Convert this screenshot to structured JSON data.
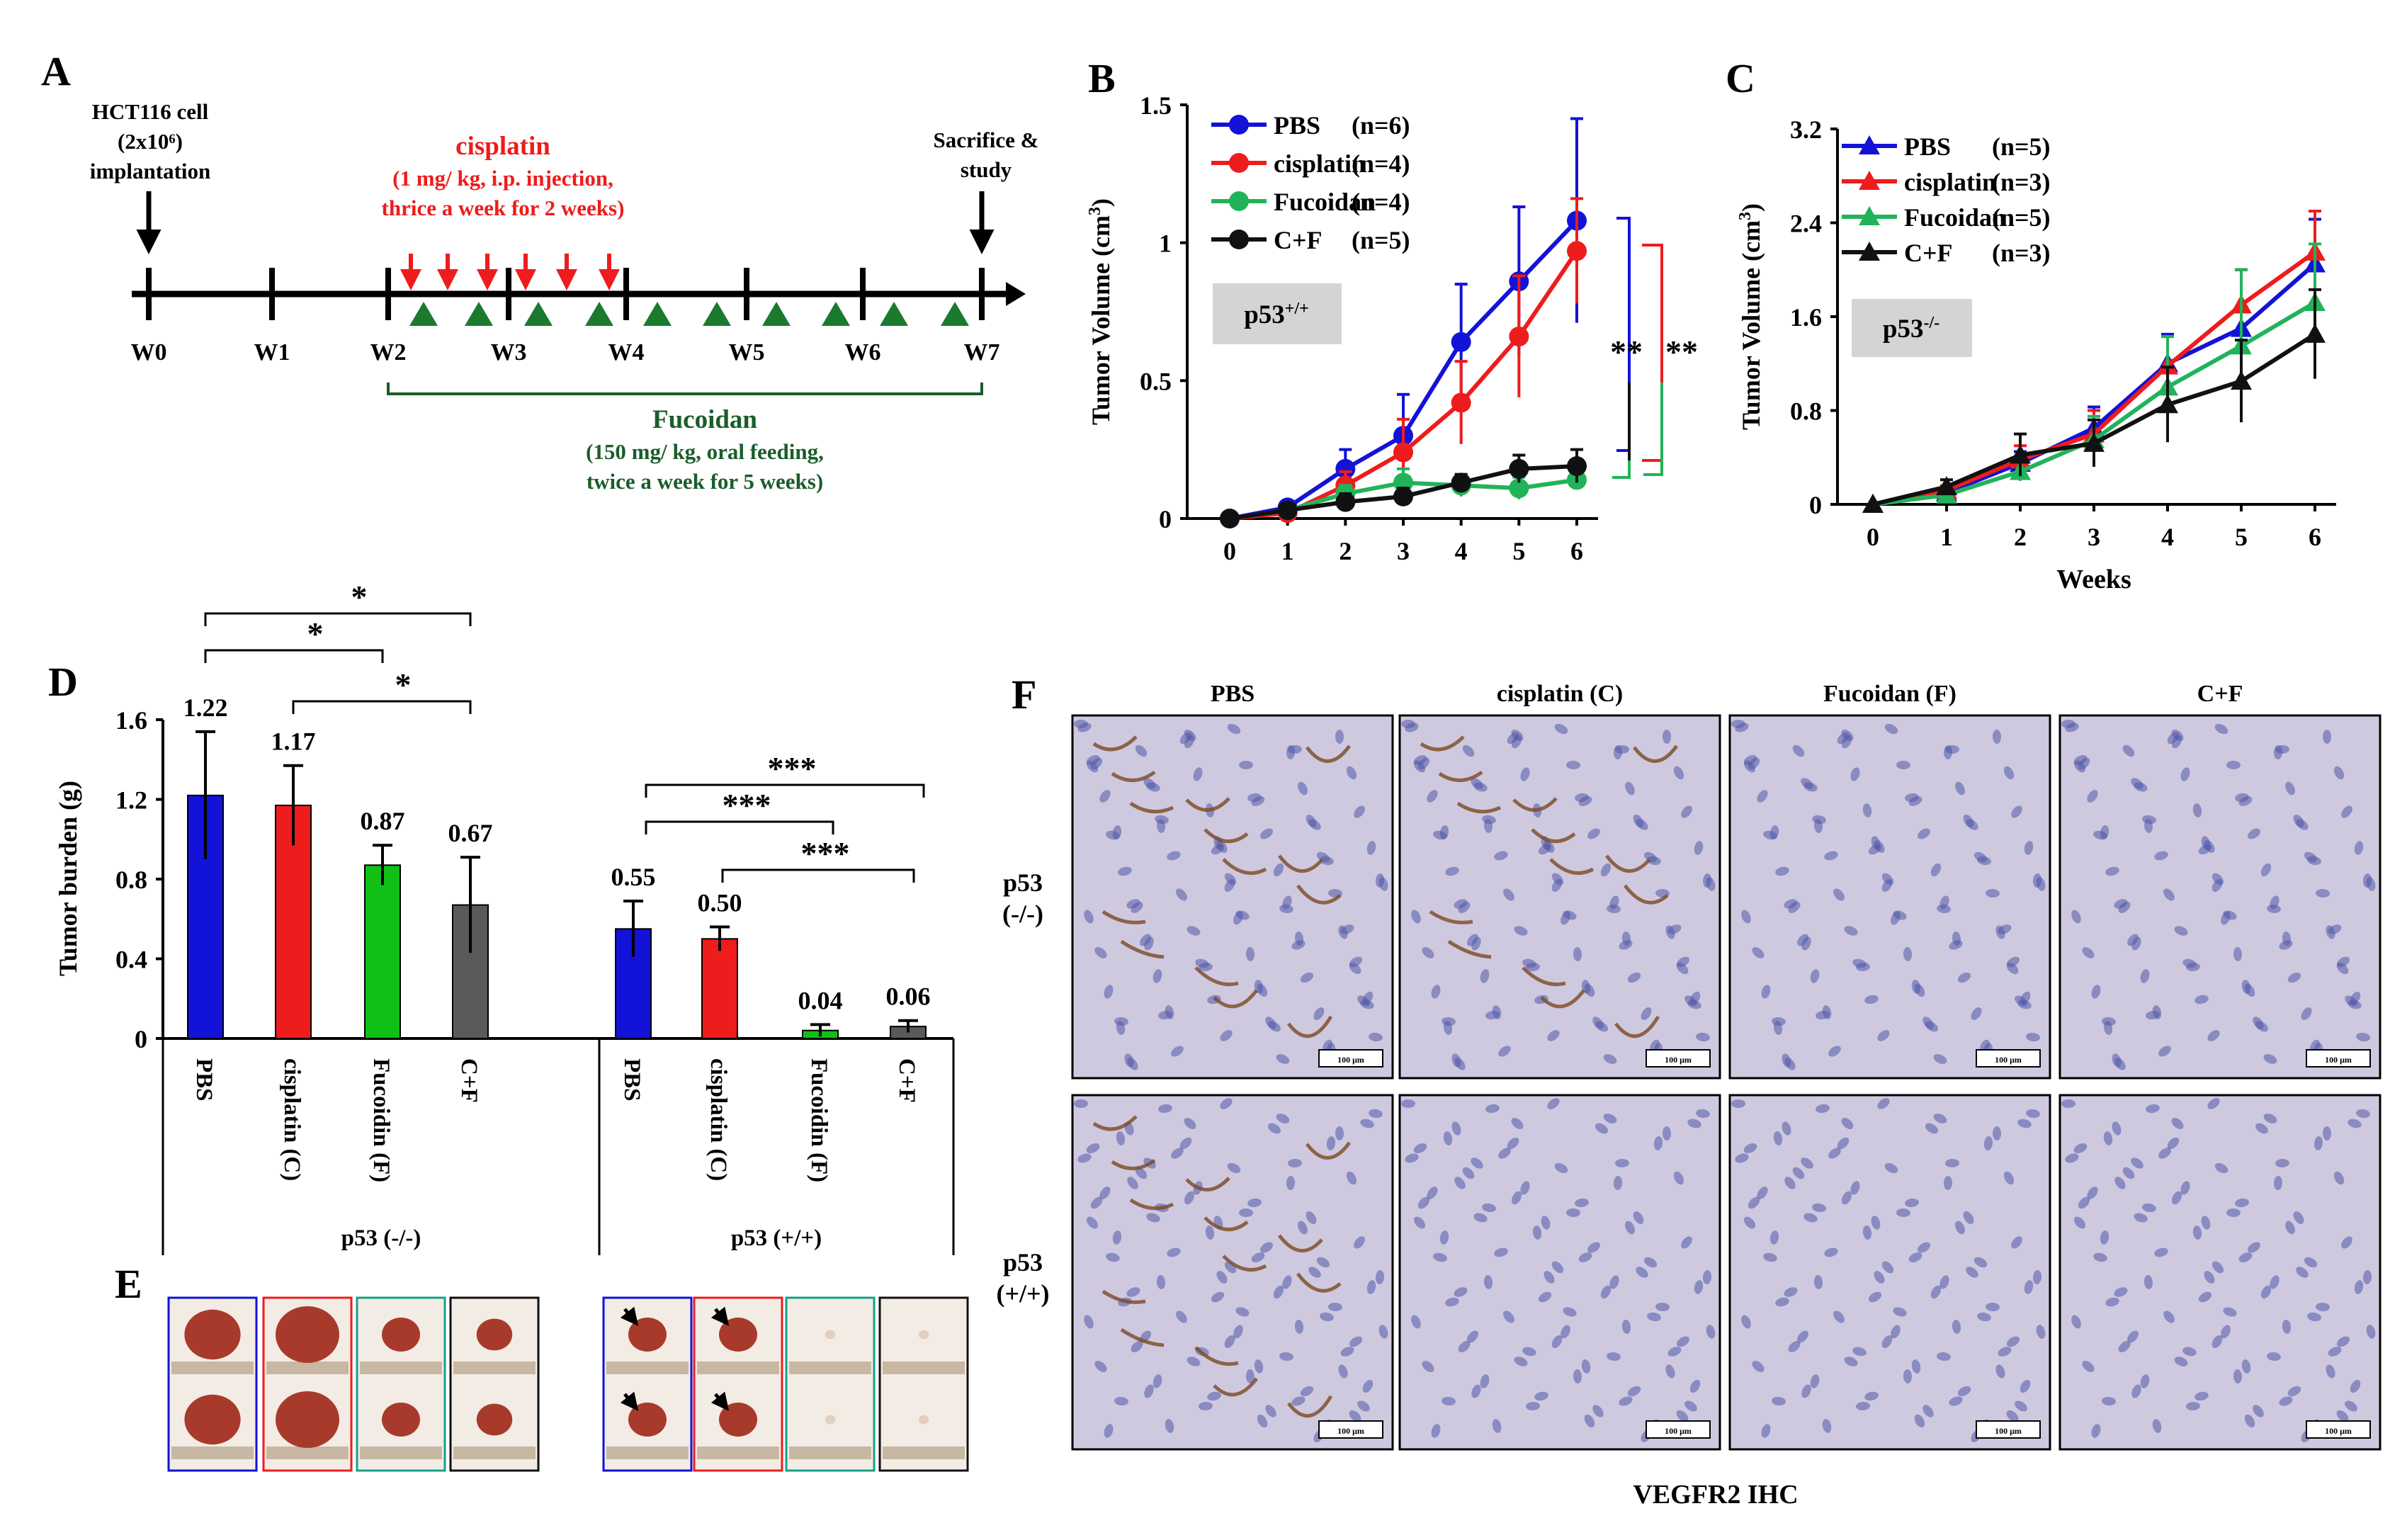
{
  "colors": {
    "pbs": "#1212d8",
    "cisplatin": "#ee1c1c",
    "fucoidan": "#22b35a",
    "combo": "#111111",
    "bar_green": "#10c016",
    "bar_gray": "#5a5a5a",
    "gray_label_bg": "#d4d4d4",
    "tissue_bg": "#cfc9e0",
    "tumor_fill": "#a83a2c"
  },
  "panels": {
    "a": "A",
    "b": "B",
    "c": "C",
    "d": "D",
    "e": "E",
    "f": "F"
  },
  "panel_a": {
    "implant_line1": "HCT116 cell",
    "implant_line2": "(2x10⁶)",
    "implant_line3": "implantation",
    "cis_title": "cisplatin",
    "cis_line2": "(1 mg/ kg, i.p. injection,",
    "cis_line3": "thrice a week for 2 weeks)",
    "sac_line1": "Sacrifice &",
    "sac_line2": "study",
    "weeks": [
      "W0",
      "W1",
      "W2",
      "W3",
      "W4",
      "W5",
      "W6",
      "W7"
    ],
    "fuc_title": "Fucoidan",
    "fuc_line2": "(150 mg/ kg, oral feeding,",
    "fuc_line3": "twice a week for 5 weeks)"
  },
  "panel_f": {
    "cols": [
      "PBS",
      "cisplatin (C)",
      "Fucoidan (F)",
      "C+F"
    ],
    "row1_a": "p53",
    "row1_b": "(-/-)",
    "row2_a": "p53",
    "row2_b": "(+/+)",
    "caption": "VEGFR2 IHC",
    "scale_label": "100 μm"
  },
  "chart_data": [
    {
      "id": "B",
      "type": "line",
      "x": [
        0,
        1,
        2,
        3,
        4,
        5,
        6
      ],
      "ylim": [
        0,
        1.5
      ],
      "yticks": [
        0,
        0.5,
        1,
        1.5
      ],
      "ytick_labels": [
        "0",
        "0.5",
        "1",
        "1.5"
      ],
      "ylabel_main": "Tumor Volume (cm",
      "ylabel_sup": "3",
      "ylabel_end": ")",
      "xlabel": "",
      "marker": "circle",
      "label_main": "p53",
      "label_sup": "+/+",
      "series": [
        {
          "name": "PBS",
          "n": "(n=6)",
          "color_key": "pbs",
          "values": [
            0,
            0.04,
            0.18,
            0.3,
            0.64,
            0.86,
            1.08
          ],
          "err": [
            0,
            0.01,
            0.07,
            0.15,
            0.21,
            0.27,
            0.37
          ]
        },
        {
          "name": "cisplatin",
          "n": "(n=4)",
          "color_key": "cisplatin",
          "values": [
            0,
            0.02,
            0.12,
            0.24,
            0.42,
            0.66,
            0.97
          ],
          "err": [
            0,
            0.01,
            0.05,
            0.12,
            0.15,
            0.22,
            0.19
          ]
        },
        {
          "name": "Fucoidan",
          "n": "(n=4)",
          "color_key": "fucoidan",
          "values": [
            0,
            0.03,
            0.09,
            0.13,
            0.12,
            0.11,
            0.14
          ],
          "err": [
            0,
            0.01,
            0.03,
            0.05,
            0.04,
            0.04,
            0.03
          ]
        },
        {
          "name": "C+F",
          "n": "(n=5)",
          "color_key": "combo",
          "values": [
            0,
            0.03,
            0.06,
            0.08,
            0.13,
            0.18,
            0.19
          ],
          "err": [
            0,
            0.01,
            0.03,
            0.03,
            0.03,
            0.05,
            0.06
          ]
        }
      ],
      "sig": [
        "**",
        "**"
      ]
    },
    {
      "id": "C",
      "type": "line",
      "x": [
        0,
        1,
        2,
        3,
        4,
        5,
        6
      ],
      "ylim": [
        0,
        3.2
      ],
      "yticks": [
        0,
        0.8,
        1.6,
        2.4,
        3.2
      ],
      "ytick_labels": [
        "0",
        "0.8",
        "1.6",
        "2.4",
        "3.2"
      ],
      "ylabel_main": "Tumor Volume (cm",
      "ylabel_sup": "3",
      "ylabel_end": ")",
      "xlabel": "Weeks",
      "marker": "triangle",
      "label_main": "p53",
      "label_sup": "-/-",
      "series": [
        {
          "name": "PBS",
          "n": "(n=5)",
          "color_key": "pbs",
          "values": [
            0,
            0.1,
            0.35,
            0.65,
            1.2,
            1.5,
            2.05
          ],
          "err": [
            0,
            0.04,
            0.1,
            0.18,
            0.25,
            0.5,
            0.38
          ]
        },
        {
          "name": "cisplatin",
          "n": "(n=3)",
          "color_key": "cisplatin",
          "values": [
            0,
            0.12,
            0.38,
            0.6,
            1.18,
            1.7,
            2.15
          ],
          "err": [
            0,
            0.04,
            0.12,
            0.2,
            0.25,
            0.3,
            0.35
          ]
        },
        {
          "name": "Fucoidan",
          "n": "(n=5)",
          "color_key": "fucoidan",
          "values": [
            0,
            0.08,
            0.28,
            0.55,
            1.0,
            1.35,
            1.72
          ],
          "err": [
            0,
            0.03,
            0.08,
            0.2,
            0.43,
            0.65,
            0.5
          ]
        },
        {
          "name": "C+F",
          "n": "(n=3)",
          "color_key": "combo",
          "values": [
            0,
            0.15,
            0.42,
            0.52,
            0.85,
            1.05,
            1.45
          ],
          "err": [
            0,
            0.06,
            0.18,
            0.2,
            0.32,
            0.35,
            0.38
          ]
        }
      ]
    },
    {
      "id": "D",
      "type": "bar",
      "ylabel": "Tumor burden (g)",
      "ylim": [
        0,
        1.6
      ],
      "yticks": [
        0,
        0.4,
        0.8,
        1.2,
        1.6
      ],
      "ytick_labels": [
        "0",
        "0.4",
        "0.8",
        "1.2",
        "1.6"
      ],
      "groups": [
        {
          "name": "p53 (-/-)",
          "categories": [
            "PBS",
            "cisplatin (C)",
            "Fucoidin (F)",
            "C+F"
          ],
          "values": [
            1.22,
            1.17,
            0.87,
            0.67
          ],
          "err": [
            0.32,
            0.2,
            0.1,
            0.24
          ],
          "labels": [
            "1.22",
            "1.17",
            "0.87",
            "0.67"
          ]
        },
        {
          "name": "p53 (+/+)",
          "categories": [
            "PBS",
            "cisplatin (C)",
            "Fucoidin (F)",
            "C+F"
          ],
          "values": [
            0.55,
            0.5,
            0.04,
            0.06
          ],
          "err": [
            0.14,
            0.06,
            0.03,
            0.03
          ],
          "labels": [
            "0.55",
            "0.50",
            "0.04",
            "0.06"
          ]
        }
      ],
      "bar_color_keys": [
        "pbs",
        "cisplatin",
        "bar_green",
        "bar_gray"
      ],
      "sig_left": [
        "*",
        "*",
        "*"
      ],
      "sig_right": [
        "***",
        "***",
        "***"
      ]
    }
  ]
}
